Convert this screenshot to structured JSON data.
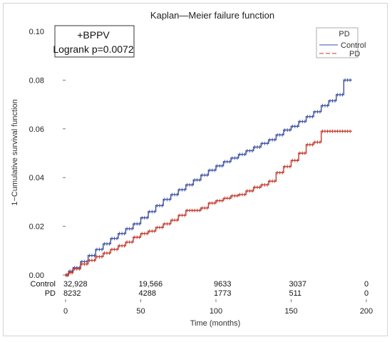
{
  "chart_data": {
    "type": "line",
    "title": "Kaplan—Meier failure function",
    "xlabel": "Time (months)",
    "ylabel": "1−Cumulative survival function",
    "xlim": [
      0,
      200
    ],
    "ylim": [
      0,
      0.1
    ],
    "x_ticks": [
      "0",
      "50",
      "100",
      "150",
      "200"
    ],
    "y_ticks": [
      "0.00",
      "0.02",
      "0.04",
      "0.06",
      "0.08",
      "0.10"
    ],
    "grid": false,
    "legend": {
      "title": "PD",
      "placement": "top-right"
    },
    "annotation": {
      "line1": "+BPPV",
      "line2": "Logrank p=0.0072"
    },
    "series": [
      {
        "name": "Control",
        "color": "#3a4fa0",
        "x": [
          0,
          2,
          5,
          10,
          15,
          20,
          25,
          30,
          35,
          40,
          45,
          50,
          55,
          60,
          65,
          70,
          75,
          80,
          85,
          90,
          95,
          100,
          105,
          110,
          115,
          120,
          125,
          130,
          135,
          140,
          145,
          150,
          155,
          160,
          165,
          170,
          175,
          180,
          185,
          190
        ],
        "y": [
          0,
          0.0015,
          0.003,
          0.0055,
          0.008,
          0.0105,
          0.0128,
          0.015,
          0.017,
          0.019,
          0.021,
          0.0235,
          0.026,
          0.0285,
          0.031,
          0.033,
          0.035,
          0.037,
          0.039,
          0.041,
          0.043,
          0.0448,
          0.0465,
          0.048,
          0.0495,
          0.051,
          0.0525,
          0.054,
          0.0555,
          0.0575,
          0.0595,
          0.061,
          0.063,
          0.065,
          0.067,
          0.0695,
          0.0715,
          0.074,
          0.08,
          0.08
        ]
      },
      {
        "name": "PD",
        "color": "#c0392b",
        "x": [
          0,
          2,
          5,
          10,
          15,
          20,
          25,
          30,
          35,
          40,
          45,
          50,
          55,
          60,
          65,
          70,
          75,
          80,
          85,
          90,
          95,
          100,
          105,
          110,
          115,
          120,
          125,
          130,
          135,
          140,
          145,
          150,
          155,
          160,
          165,
          170,
          175,
          180,
          185,
          190
        ],
        "y": [
          0,
          0.001,
          0.0025,
          0.0045,
          0.006,
          0.0075,
          0.009,
          0.0105,
          0.012,
          0.0135,
          0.0155,
          0.017,
          0.018,
          0.0195,
          0.021,
          0.0225,
          0.0245,
          0.0265,
          0.0265,
          0.0275,
          0.0295,
          0.0305,
          0.0315,
          0.0325,
          0.033,
          0.0345,
          0.036,
          0.037,
          0.0385,
          0.042,
          0.0445,
          0.047,
          0.05,
          0.0535,
          0.0545,
          0.059,
          0.059,
          0.059,
          0.059,
          0.059
        ]
      }
    ],
    "risk_table": {
      "times": [
        0,
        50,
        100,
        150,
        200
      ],
      "rows": [
        {
          "label": "Control",
          "values": [
            "32,928",
            "19,566",
            "9633",
            "3037",
            "0"
          ]
        },
        {
          "label": "PD",
          "values": [
            "8232",
            "4288",
            "1773",
            "511",
            "0"
          ]
        }
      ]
    }
  }
}
